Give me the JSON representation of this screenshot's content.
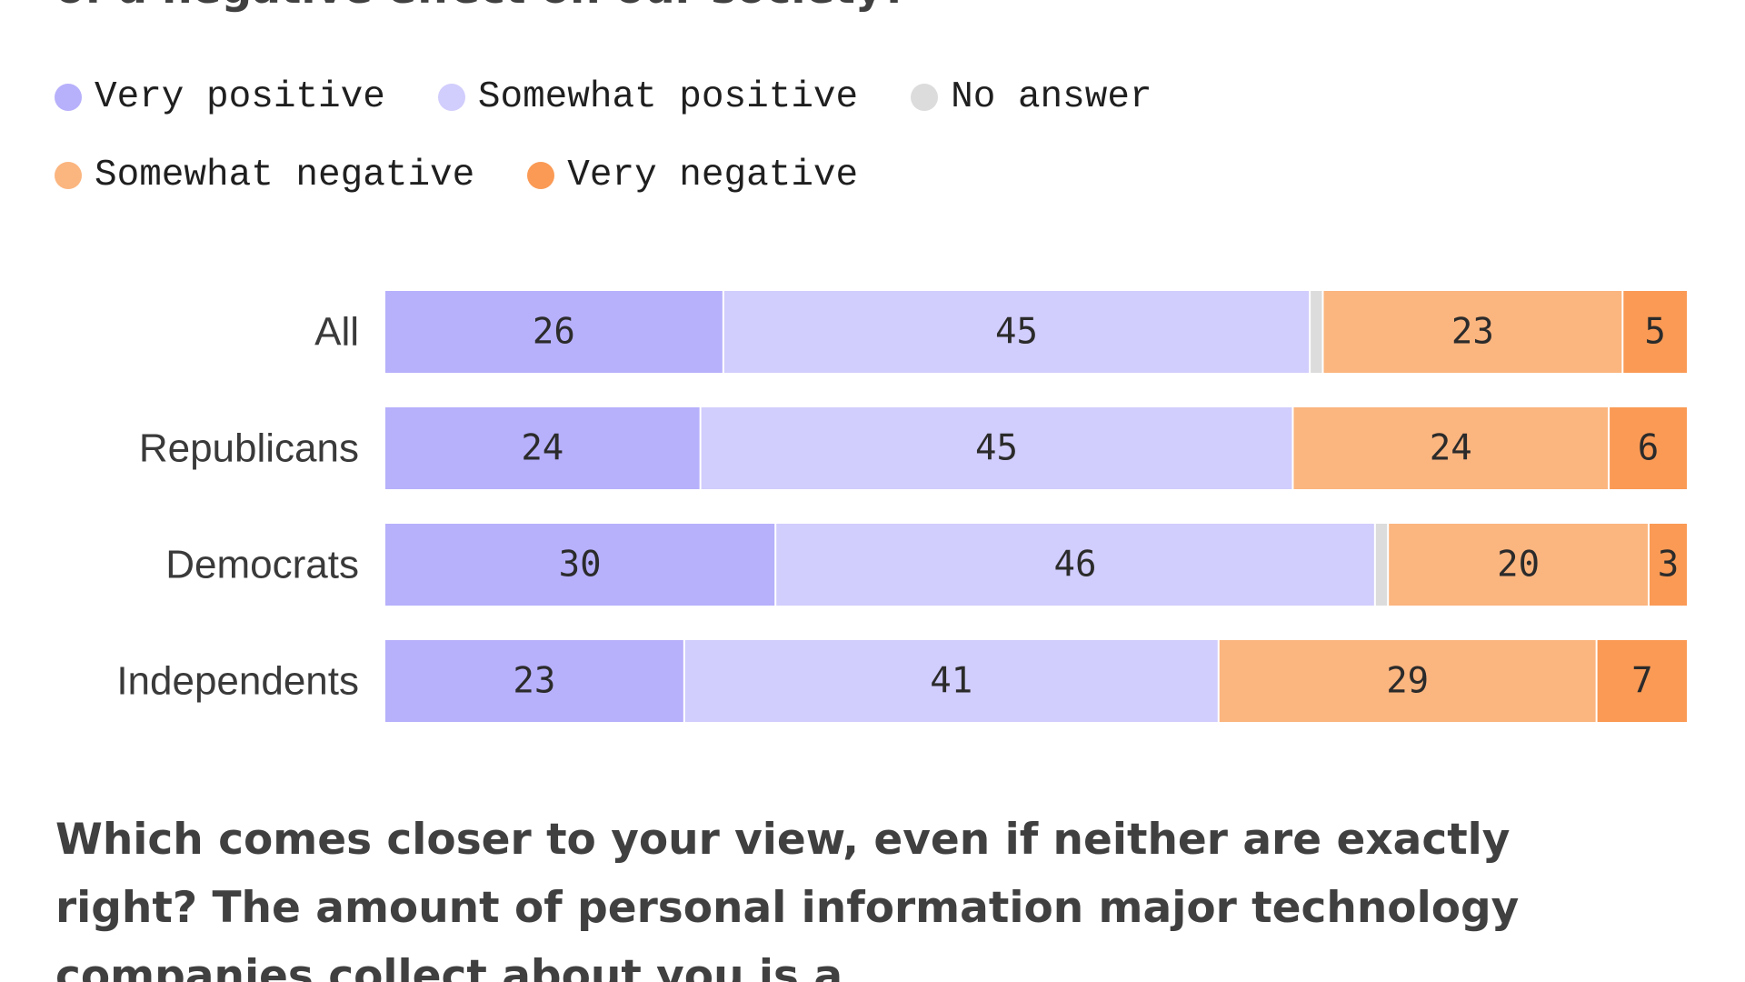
{
  "question_top": "of a negative effect on our society?",
  "question_bottom": "Which comes closer to your view, even if neither are exactly right? The amount of personal information major technology companies collect about you is a...",
  "colors": {
    "very_positive": "#b7b0fb",
    "somewhat_positive": "#d1cdfc",
    "no_answer": "#dcdcdc",
    "somewhat_negative": "#fbb57f",
    "very_negative": "#fa9a55"
  },
  "chart_data": {
    "type": "bar",
    "orientation": "horizontal",
    "stacked": true,
    "legend_position": "top",
    "categories": [
      "All",
      "Republicans",
      "Democrats",
      "Independents"
    ],
    "series": [
      {
        "name": "Very positive",
        "color": "#b7b0fb",
        "values": [
          26,
          24,
          30,
          23
        ]
      },
      {
        "name": "Somewhat positive",
        "color": "#d1cdfc",
        "values": [
          45,
          45,
          46,
          41
        ]
      },
      {
        "name": "No answer",
        "color": "#dcdcdc",
        "values": [
          1,
          0,
          1,
          0
        ]
      },
      {
        "name": "Somewhat negative",
        "color": "#fbb57f",
        "values": [
          23,
          24,
          20,
          29
        ]
      },
      {
        "name": "Very negative",
        "color": "#fa9a55",
        "values": [
          5,
          6,
          3,
          7
        ]
      }
    ],
    "labeled_series": [
      "Very positive",
      "Somewhat positive",
      "Somewhat negative",
      "Very negative"
    ],
    "title": "",
    "xlabel": "",
    "ylabel": ""
  }
}
